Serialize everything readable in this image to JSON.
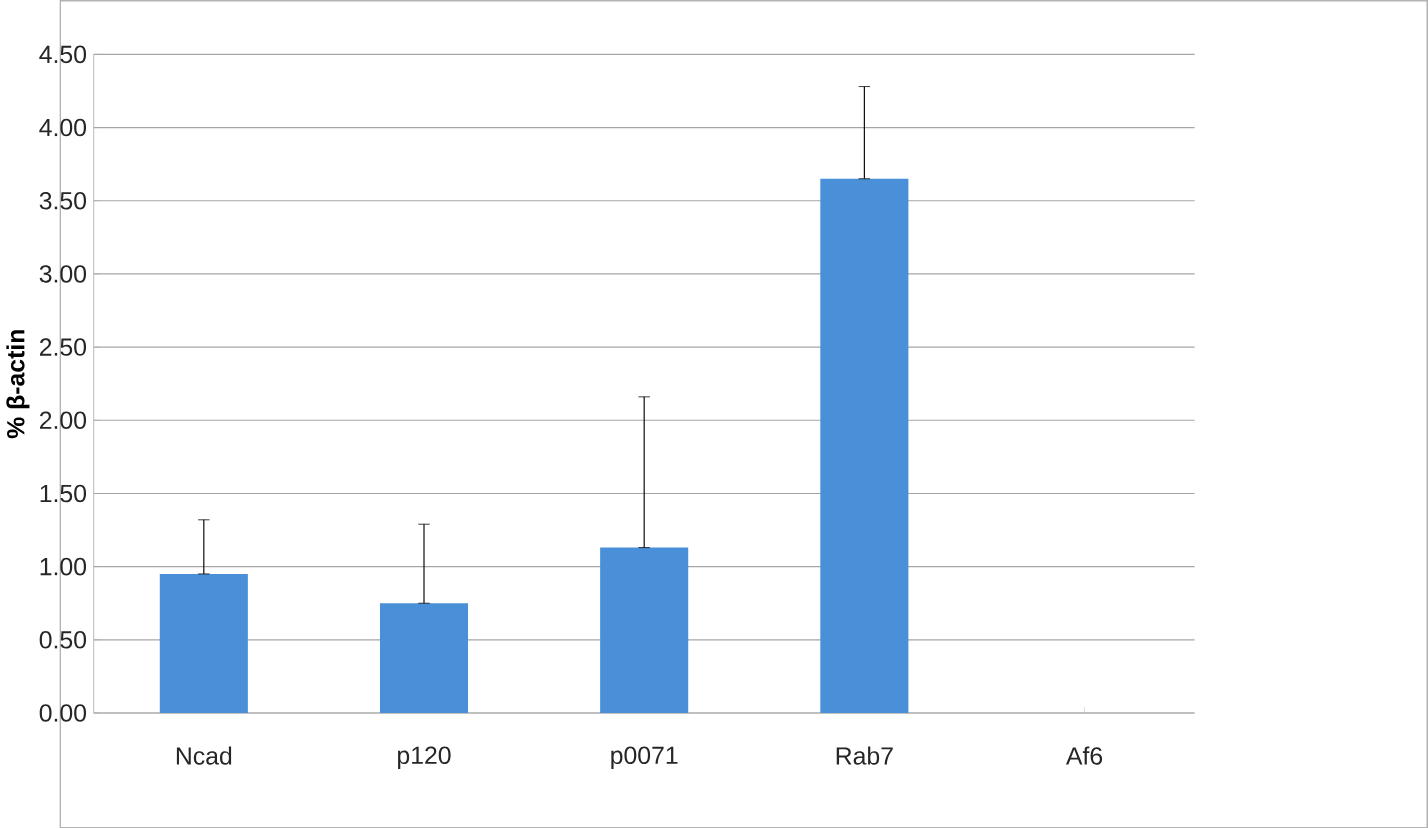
{
  "chart_data": {
    "type": "bar",
    "ylabel": "% β-actin",
    "categories": [
      "Ncad",
      "p120",
      "p0071",
      "Rab7",
      "Af6"
    ],
    "values": [
      0.95,
      0.75,
      1.13,
      3.65,
      0
    ],
    "errors": [
      [
        0.95,
        1.32
      ],
      [
        0.75,
        1.29
      ],
      [
        1.13,
        2.16
      ],
      [
        3.65,
        4.28
      ],
      null
    ],
    "color": "#4a90d9",
    "ylim": [
      0,
      4.5
    ],
    "yticks": [
      {
        "value": 0,
        "label": "0.00"
      },
      {
        "value": 0.5,
        "label": "0.50"
      },
      {
        "value": 1,
        "label": "1.00"
      },
      {
        "value": 1.5,
        "label": "1.50"
      },
      {
        "value": 2,
        "label": "2.00"
      },
      {
        "value": 2.5,
        "label": "2.50"
      },
      {
        "value": 3,
        "label": "3.00"
      },
      {
        "value": 3.5,
        "label": "3.50"
      },
      {
        "value": 4,
        "label": "4.00"
      },
      {
        "value": 4.5,
        "label": "4.50"
      }
    ],
    "grid": "y"
  }
}
